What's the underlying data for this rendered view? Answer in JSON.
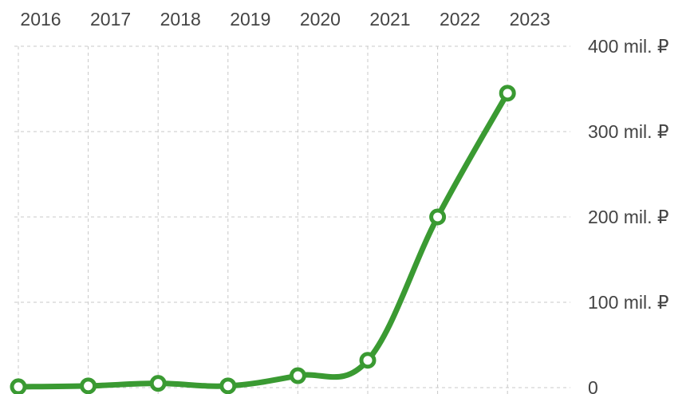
{
  "chart_data": {
    "type": "line",
    "x": [
      "2016",
      "2017",
      "2018",
      "2019",
      "2020",
      "2021",
      "2022",
      "2023"
    ],
    "series": [
      {
        "values": [
          1,
          2,
          5,
          2,
          14,
          32,
          200,
          345
        ]
      }
    ],
    "y_ticks": [
      0,
      100,
      200,
      300,
      400
    ],
    "y_tick_labels": [
      "0",
      "100 mil. ₽",
      "200 mil. ₽",
      "300 mil. ₽",
      "400 mil. ₽"
    ],
    "ylim": [
      0,
      400
    ],
    "x_axis_position": "top",
    "y_axis_position": "right",
    "grid": true,
    "grid_style": "dashed",
    "line_color": "#3a9a32",
    "marker_fill": "#ffffff"
  }
}
